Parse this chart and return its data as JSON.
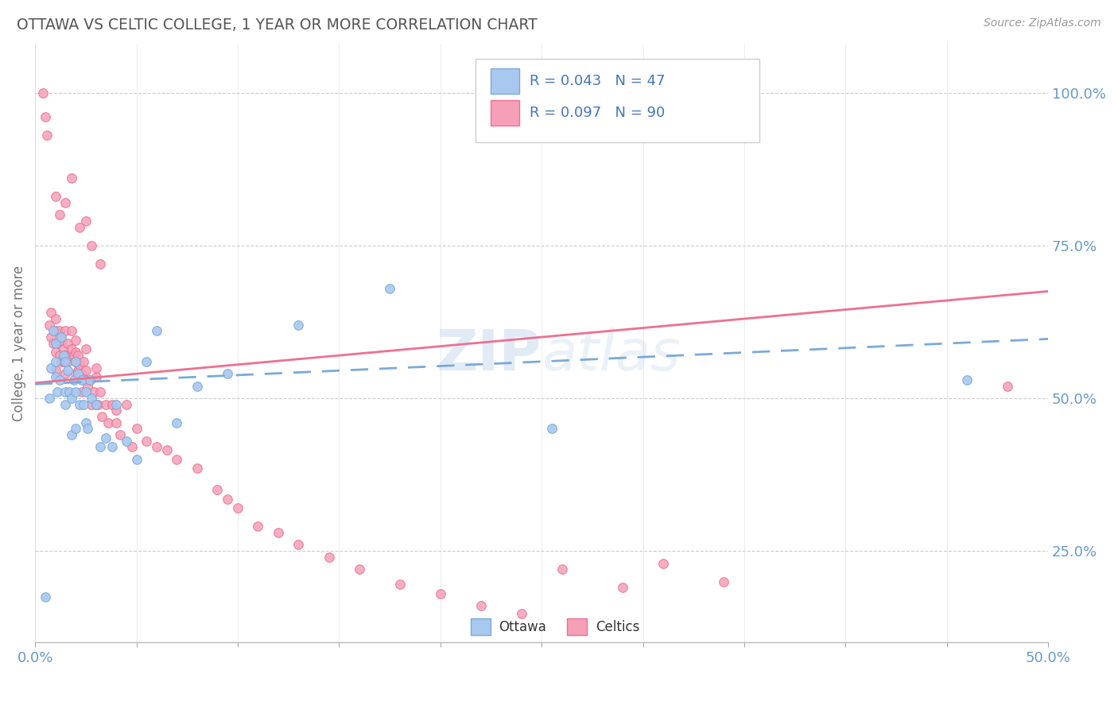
{
  "title": "OTTAWA VS CELTIC COLLEGE, 1 YEAR OR MORE CORRELATION CHART",
  "source_text": "Source: ZipAtlas.com",
  "ylabel": "College, 1 year or more",
  "xlim": [
    0.0,
    0.5
  ],
  "ylim": [
    0.1,
    1.08
  ],
  "yticks_right": [
    0.25,
    0.5,
    0.75,
    1.0
  ],
  "ytick_right_labels": [
    "25.0%",
    "50.0%",
    "75.0%",
    "100.0%"
  ],
  "blue_color": "#A8C8F0",
  "pink_color": "#F5A0B8",
  "blue_line_color": "#7BAAD8",
  "pink_line_color": "#EE7090",
  "axis_label_color": "#6699CC",
  "watermark_color": "#C5D8EE",
  "blue_scatter_x": [
    0.005,
    0.007,
    0.008,
    0.009,
    0.01,
    0.01,
    0.01,
    0.011,
    0.012,
    0.013,
    0.014,
    0.015,
    0.015,
    0.015,
    0.016,
    0.017,
    0.018,
    0.018,
    0.019,
    0.02,
    0.02,
    0.02,
    0.021,
    0.022,
    0.023,
    0.024,
    0.025,
    0.025,
    0.026,
    0.027,
    0.028,
    0.03,
    0.032,
    0.035,
    0.038,
    0.04,
    0.045,
    0.05,
    0.055,
    0.06,
    0.07,
    0.08,
    0.095,
    0.13,
    0.175,
    0.255,
    0.46
  ],
  "blue_scatter_y": [
    0.175,
    0.5,
    0.55,
    0.61,
    0.535,
    0.56,
    0.59,
    0.51,
    0.53,
    0.6,
    0.57,
    0.49,
    0.51,
    0.56,
    0.545,
    0.51,
    0.44,
    0.5,
    0.53,
    0.45,
    0.51,
    0.56,
    0.54,
    0.49,
    0.53,
    0.49,
    0.46,
    0.51,
    0.45,
    0.53,
    0.5,
    0.49,
    0.42,
    0.435,
    0.42,
    0.49,
    0.43,
    0.4,
    0.56,
    0.61,
    0.46,
    0.52,
    0.54,
    0.62,
    0.68,
    0.45,
    0.53
  ],
  "pink_scatter_x": [
    0.004,
    0.005,
    0.006,
    0.007,
    0.008,
    0.008,
    0.009,
    0.01,
    0.01,
    0.01,
    0.01,
    0.011,
    0.012,
    0.012,
    0.013,
    0.013,
    0.014,
    0.014,
    0.015,
    0.015,
    0.015,
    0.015,
    0.016,
    0.016,
    0.017,
    0.018,
    0.018,
    0.019,
    0.02,
    0.02,
    0.02,
    0.02,
    0.021,
    0.021,
    0.022,
    0.023,
    0.023,
    0.024,
    0.025,
    0.025,
    0.025,
    0.026,
    0.027,
    0.028,
    0.029,
    0.03,
    0.03,
    0.03,
    0.031,
    0.032,
    0.033,
    0.035,
    0.036,
    0.038,
    0.04,
    0.04,
    0.042,
    0.045,
    0.048,
    0.05,
    0.055,
    0.06,
    0.065,
    0.07,
    0.08,
    0.09,
    0.095,
    0.1,
    0.11,
    0.12,
    0.13,
    0.145,
    0.16,
    0.18,
    0.2,
    0.22,
    0.24,
    0.26,
    0.29,
    0.31,
    0.34,
    0.01,
    0.012,
    0.015,
    0.018,
    0.022,
    0.025,
    0.028,
    0.032,
    0.48
  ],
  "pink_scatter_y": [
    1.0,
    0.96,
    0.93,
    0.62,
    0.64,
    0.6,
    0.59,
    0.63,
    0.61,
    0.575,
    0.545,
    0.59,
    0.61,
    0.57,
    0.56,
    0.595,
    0.56,
    0.58,
    0.56,
    0.54,
    0.57,
    0.61,
    0.59,
    0.56,
    0.57,
    0.58,
    0.61,
    0.57,
    0.575,
    0.56,
    0.595,
    0.54,
    0.545,
    0.57,
    0.555,
    0.54,
    0.51,
    0.56,
    0.545,
    0.53,
    0.58,
    0.52,
    0.53,
    0.49,
    0.51,
    0.535,
    0.55,
    0.49,
    0.49,
    0.51,
    0.47,
    0.49,
    0.46,
    0.49,
    0.46,
    0.48,
    0.44,
    0.49,
    0.42,
    0.45,
    0.43,
    0.42,
    0.415,
    0.4,
    0.385,
    0.35,
    0.335,
    0.32,
    0.29,
    0.28,
    0.26,
    0.24,
    0.22,
    0.195,
    0.18,
    0.16,
    0.148,
    0.22,
    0.19,
    0.23,
    0.2,
    0.83,
    0.8,
    0.82,
    0.86,
    0.78,
    0.79,
    0.75,
    0.72,
    0.52
  ]
}
